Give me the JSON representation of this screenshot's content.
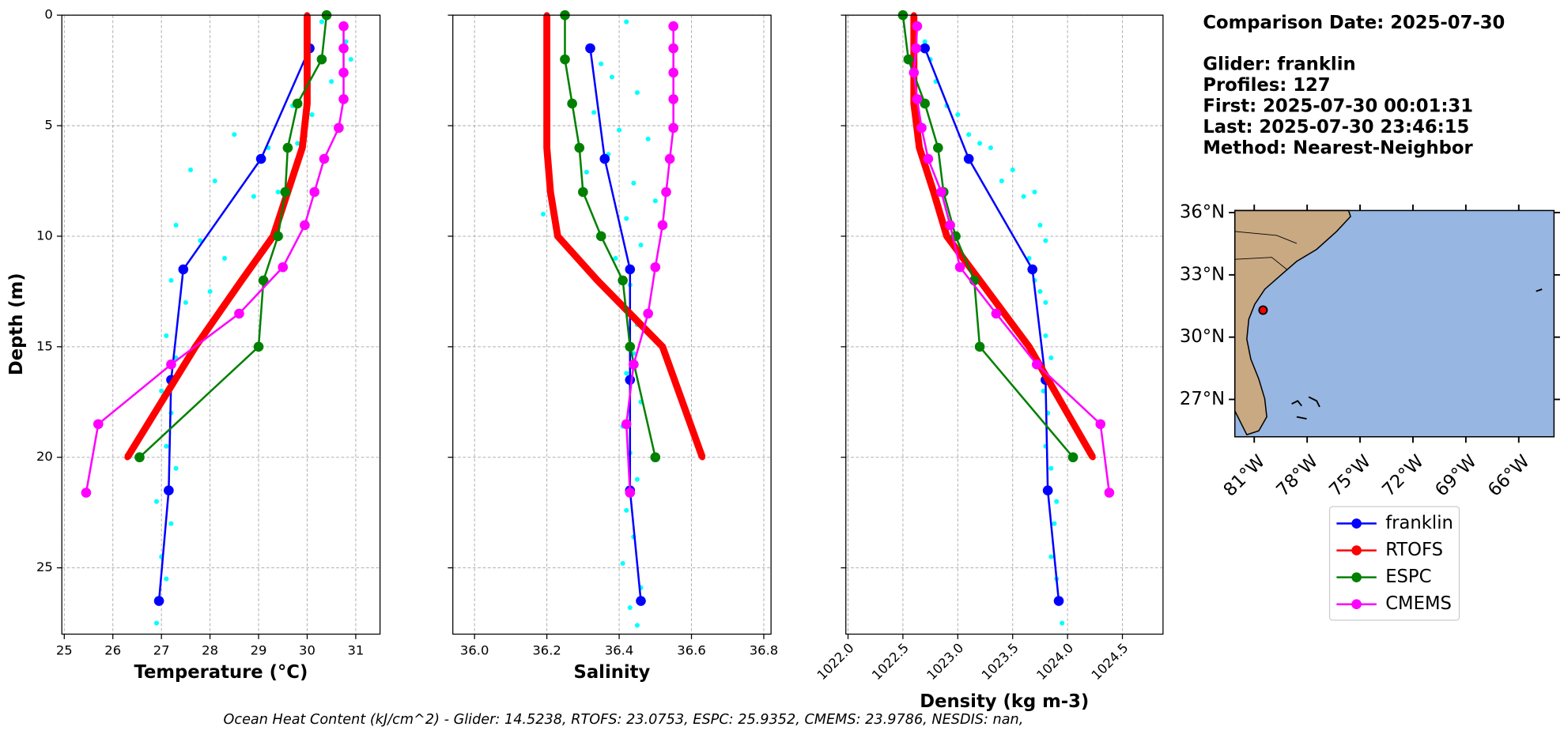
{
  "chart_data": [
    {
      "type": "line",
      "xlabel": "Temperature (°C)",
      "ylabel": "Depth (m)",
      "xlim": [
        24.95,
        31.5
      ],
      "ylim": [
        0,
        28
      ],
      "y_inverted": true,
      "grid": true,
      "ytick_labels": true,
      "xtick_rotation": 0,
      "xticks": [
        25,
        26,
        27,
        28,
        29,
        30,
        31
      ],
      "yticks": [
        0,
        5,
        10,
        15,
        20,
        25
      ],
      "series": [
        {
          "type": "scatter",
          "color": "#00ffff",
          "x": [
            30.3,
            30.8,
            30.9,
            30.5,
            29.7,
            30.1,
            28.5,
            29.2,
            29.8,
            27.6,
            28.1,
            28.9,
            29.4,
            27.3,
            27.8,
            28.3,
            27.2,
            27.5,
            28.0,
            27.1,
            27.3,
            27.0,
            27.2,
            27.1,
            27.3,
            26.9,
            27.2,
            27.0,
            27.1,
            26.9
          ],
          "values": [
            0.3,
            1.2,
            2.0,
            3.0,
            4.1,
            4.5,
            5.4,
            6.0,
            5.8,
            7.0,
            7.5,
            8.2,
            8.0,
            9.5,
            10.2,
            11.0,
            12.0,
            13.0,
            12.5,
            14.5,
            15.5,
            17.0,
            18.0,
            19.5,
            20.5,
            22.0,
            23.0,
            24.5,
            25.5,
            27.5
          ]
        },
        {
          "name": "franklin",
          "color": "#0000ff",
          "linewidth": 2,
          "marker_size": 5,
          "x": [
            30.05,
            29.05,
            27.45,
            27.2,
            27.15,
            26.95
          ],
          "values": [
            1.5,
            6.5,
            11.5,
            16.5,
            21.5,
            26.5
          ]
        },
        {
          "name": "RTOFS",
          "color": "#ff0000",
          "linewidth": 7,
          "marker_size": 3,
          "x": [
            30.0,
            30.0,
            30.0,
            29.9,
            29.6,
            29.3,
            28.65,
            27.7,
            26.3
          ],
          "values": [
            0,
            2,
            4,
            6,
            8,
            10,
            12,
            15,
            20
          ]
        },
        {
          "name": "ESPC",
          "color": "#008000",
          "linewidth": 2,
          "marker_size": 5,
          "x": [
            30.4,
            30.3,
            29.8,
            29.6,
            29.55,
            29.4,
            29.1,
            29.0,
            26.55
          ],
          "values": [
            0,
            2,
            4,
            6,
            8,
            10,
            12,
            15,
            20
          ]
        },
        {
          "name": "CMEMS",
          "color": "#ff00ff",
          "linewidth": 2,
          "marker_size": 5,
          "x": [
            30.75,
            30.75,
            30.75,
            30.75,
            30.65,
            30.35,
            30.15,
            29.95,
            29.5,
            28.6,
            27.2,
            25.7,
            25.45
          ],
          "values": [
            0.5,
            1.5,
            2.6,
            3.8,
            5.1,
            6.5,
            8,
            9.5,
            11.4,
            13.5,
            15.8,
            18.5,
            21.6
          ]
        }
      ]
    },
    {
      "type": "line",
      "xlabel": "Salinity",
      "xlim": [
        35.94,
        36.82
      ],
      "ylim": [
        0,
        28
      ],
      "y_inverted": true,
      "grid": true,
      "ytick_labels": false,
      "xtick_rotation": 0,
      "xticks": [
        {
          "value": 36.0,
          "label": "36.0"
        },
        36.2,
        36.4,
        36.6,
        36.8
      ],
      "yticks": [
        0,
        5,
        10,
        15,
        20,
        25
      ],
      "series": [
        {
          "type": "scatter",
          "color": "#00ffff",
          "x": [
            36.42,
            36.35,
            36.38,
            36.45,
            36.33,
            36.4,
            36.48,
            36.37,
            36.31,
            36.44,
            36.5,
            36.42,
            36.46,
            36.39,
            36.43,
            36.41,
            36.45,
            36.44,
            36.42,
            36.46,
            36.41,
            36.43,
            36.45,
            36.42,
            36.44,
            36.41,
            36.46,
            36.43,
            36.45,
            36.19
          ],
          "values": [
            0.3,
            2.2,
            2.8,
            3.5,
            4.4,
            5.2,
            5.6,
            6.3,
            7.1,
            7.6,
            8.4,
            9.2,
            10.4,
            11.0,
            12.2,
            13.1,
            14.0,
            15.3,
            16.2,
            17.5,
            18.6,
            19.8,
            21.0,
            22.4,
            23.6,
            24.8,
            25.9,
            26.8,
            27.6,
            9.0
          ]
        },
        {
          "name": "franklin",
          "color": "#0000ff",
          "linewidth": 2,
          "marker_size": 5,
          "x": [
            36.32,
            36.36,
            36.43,
            36.43,
            36.43,
            36.46
          ],
          "values": [
            1.5,
            6.5,
            11.5,
            16.5,
            21.5,
            26.5
          ]
        },
        {
          "name": "RTOFS",
          "color": "#ff0000",
          "linewidth": 7,
          "marker_size": 3,
          "x": [
            36.2,
            36.2,
            36.2,
            36.2,
            36.21,
            36.23,
            36.34,
            36.52,
            36.63
          ],
          "values": [
            0,
            2,
            4,
            6,
            8,
            10,
            12,
            15,
            20
          ]
        },
        {
          "name": "ESPC",
          "color": "#008000",
          "linewidth": 2,
          "marker_size": 5,
          "x": [
            36.25,
            36.25,
            36.27,
            36.29,
            36.3,
            36.35,
            36.41,
            36.43,
            36.5
          ],
          "values": [
            0,
            2,
            4,
            6,
            8,
            10,
            12,
            15,
            20
          ]
        },
        {
          "name": "CMEMS",
          "color": "#ff00ff",
          "linewidth": 2,
          "marker_size": 5,
          "x": [
            36.55,
            36.55,
            36.55,
            36.55,
            36.55,
            36.54,
            36.53,
            36.52,
            36.5,
            36.48,
            36.44,
            36.42,
            36.43
          ],
          "values": [
            0.5,
            1.5,
            2.6,
            3.8,
            5.1,
            6.5,
            8,
            9.5,
            11.4,
            13.5,
            15.8,
            18.5,
            21.6
          ]
        }
      ]
    },
    {
      "type": "line",
      "xlabel": "Density (kg m-3)",
      "xlim": [
        1021.98,
        1024.87
      ],
      "ylim": [
        0,
        28
      ],
      "y_inverted": true,
      "grid": true,
      "ytick_labels": false,
      "xtick_rotation": 45,
      "xticks": [
        {
          "value": 1022.0,
          "label": "1022.0"
        },
        1022.5,
        {
          "value": 1023.0,
          "label": "1023.0"
        },
        1023.5,
        {
          "value": 1024.0,
          "label": "1024.0"
        },
        1024.5
      ],
      "yticks": [
        0,
        5,
        10,
        15,
        20,
        25
      ],
      "series": [
        {
          "type": "scatter",
          "color": "#00ffff",
          "x": [
            1022.6,
            1022.7,
            1022.75,
            1022.8,
            1022.9,
            1023.0,
            1023.1,
            1023.3,
            1023.2,
            1023.5,
            1023.4,
            1023.6,
            1023.7,
            1023.75,
            1023.8,
            1023.65,
            1023.7,
            1023.8,
            1023.75,
            1023.8,
            1023.85,
            1023.78,
            1023.82,
            1023.8,
            1023.85,
            1023.9,
            1023.88,
            1023.85,
            1023.9,
            1023.95
          ],
          "values": [
            0.3,
            1.2,
            2.0,
            3.0,
            4.1,
            4.5,
            5.4,
            6.0,
            5.8,
            7.0,
            7.5,
            8.2,
            8.0,
            9.5,
            10.2,
            11.0,
            12.0,
            13.0,
            12.5,
            14.5,
            15.5,
            17.0,
            18.0,
            19.5,
            20.5,
            22.0,
            23.0,
            24.5,
            25.5,
            27.5
          ]
        },
        {
          "name": "franklin",
          "color": "#0000ff",
          "linewidth": 2,
          "marker_size": 5,
          "x": [
            1022.7,
            1023.1,
            1023.68,
            1023.8,
            1023.82,
            1023.92
          ],
          "values": [
            1.5,
            6.5,
            11.5,
            16.5,
            21.5,
            26.5
          ]
        },
        {
          "name": "RTOFS",
          "color": "#ff0000",
          "linewidth": 7,
          "marker_size": 3,
          "x": [
            1022.6,
            1022.6,
            1022.6,
            1022.65,
            1022.78,
            1022.9,
            1023.2,
            1023.65,
            1024.23
          ],
          "values": [
            0,
            2,
            4,
            6,
            8,
            10,
            12,
            15,
            20
          ]
        },
        {
          "name": "ESPC",
          "color": "#008000",
          "linewidth": 2,
          "marker_size": 5,
          "x": [
            1022.5,
            1022.55,
            1022.7,
            1022.82,
            1022.87,
            1022.98,
            1023.15,
            1023.2,
            1024.05
          ],
          "values": [
            0,
            2,
            4,
            6,
            8,
            10,
            12,
            15,
            20
          ]
        },
        {
          "name": "CMEMS",
          "color": "#ff00ff",
          "linewidth": 2,
          "marker_size": 5,
          "x": [
            1022.63,
            1022.62,
            1022.6,
            1022.63,
            1022.67,
            1022.73,
            1022.85,
            1022.93,
            1023.02,
            1023.35,
            1023.72,
            1024.3,
            1024.38
          ],
          "values": [
            0.5,
            1.5,
            2.6,
            3.8,
            5.1,
            6.5,
            8,
            9.5,
            11.4,
            13.5,
            15.8,
            18.5,
            21.6
          ]
        }
      ]
    },
    {
      "type": "map",
      "xlim": [
        -82.1,
        -64.0
      ],
      "ylim": [
        25.2,
        36.1
      ],
      "xticks": [
        {
          "value": -81,
          "label": "81°W"
        },
        {
          "value": -78,
          "label": "78°W"
        },
        {
          "value": -75,
          "label": "75°W"
        },
        {
          "value": -72,
          "label": "72°W"
        },
        {
          "value": -69,
          "label": "69°W"
        },
        {
          "value": -66,
          "label": "66°W"
        }
      ],
      "yticks": [
        {
          "value": 36,
          "label": "36°N"
        },
        {
          "value": 33,
          "label": "33°N"
        },
        {
          "value": 30,
          "label": "30°N"
        },
        {
          "value": 27,
          "label": "27°N"
        }
      ],
      "glider_position": {
        "lon": -80.5,
        "lat": 31.3
      },
      "marker_color": "#ff0000"
    }
  ],
  "info": [
    "Comparison Date: 2025-07-30",
    "Glider: franklin",
    "Profiles: 127",
    "First: 2025-07-30 00:01:31",
    "Last: 2025-07-30 23:46:15",
    "Method: Nearest-Neighbor"
  ],
  "footer": "Ocean Heat Content (kJ/cm^2) - Glider: 14.5238,  RTOFS: 23.0753,  ESPC: 25.9352,  CMEMS: 23.9786,  NESDIS: nan,"
}
